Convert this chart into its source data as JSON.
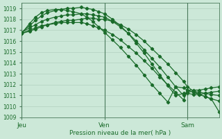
{
  "bg_color": "#cce8d8",
  "grid_color": "#aacbb8",
  "line_color": "#1a6b2a",
  "vline_color": "#4a7a5a",
  "ylabel_text": "Pression niveau de la mer( hPa )",
  "ylim": [
    1009,
    1019.5
  ],
  "yticks": [
    1009,
    1010,
    1011,
    1012,
    1013,
    1014,
    1015,
    1016,
    1017,
    1018,
    1019
  ],
  "xtick_labels": [
    "Jeu",
    "Ven",
    "Sam"
  ],
  "xtick_positions": [
    0,
    0.42,
    0.84
  ],
  "vline_positions": [
    0,
    0.42,
    0.84
  ],
  "series": [
    {
      "x": [
        0.0,
        0.04,
        0.07,
        0.1,
        0.13,
        0.17,
        0.2,
        0.23,
        0.26,
        0.3,
        0.33,
        0.36,
        0.39,
        0.42,
        0.46,
        0.5,
        0.54,
        0.58,
        0.62,
        0.66,
        0.7,
        0.74,
        0.78,
        0.82,
        0.84,
        0.87,
        0.9,
        0.93,
        0.96,
        1.0
      ],
      "y": [
        1016.7,
        1016.9,
        1017.1,
        1017.3,
        1017.5,
        1017.7,
        1017.8,
        1017.9,
        1017.9,
        1018.0,
        1018.1,
        1018.1,
        1018.0,
        1018.0,
        1017.8,
        1017.5,
        1017.1,
        1016.6,
        1016.0,
        1015.3,
        1014.6,
        1013.9,
        1013.1,
        1012.3,
        1011.8,
        1011.4,
        1011.1,
        1010.9,
        1010.7,
        1010.5
      ]
    },
    {
      "x": [
        0.0,
        0.04,
        0.07,
        0.1,
        0.13,
        0.17,
        0.2,
        0.23,
        0.26,
        0.3,
        0.33,
        0.36,
        0.39,
        0.42,
        0.46,
        0.5,
        0.54,
        0.58,
        0.62,
        0.66,
        0.7,
        0.74,
        0.78,
        0.82,
        0.84,
        0.87,
        0.9,
        0.93,
        0.96,
        1.0
      ],
      "y": [
        1016.8,
        1017.2,
        1017.5,
        1017.8,
        1018.0,
        1018.2,
        1018.3,
        1018.4,
        1018.4,
        1018.5,
        1018.5,
        1018.4,
        1018.3,
        1018.2,
        1017.8,
        1017.3,
        1016.7,
        1016.0,
        1015.2,
        1014.4,
        1013.6,
        1012.7,
        1011.8,
        1011.0,
        1011.2,
        1011.1,
        1011.1,
        1011.2,
        1011.3,
        1011.4
      ]
    },
    {
      "x": [
        0.0,
        0.04,
        0.07,
        0.1,
        0.13,
        0.17,
        0.2,
        0.23,
        0.26,
        0.3,
        0.33,
        0.36,
        0.39,
        0.42,
        0.46,
        0.5,
        0.54,
        0.58,
        0.62,
        0.66,
        0.7,
        0.74,
        0.78,
        0.82,
        0.84,
        0.87,
        0.9,
        0.93,
        0.96,
        1.0
      ],
      "y": [
        1016.8,
        1017.4,
        1017.9,
        1018.3,
        1018.6,
        1018.8,
        1018.9,
        1019.0,
        1019.0,
        1019.1,
        1019.0,
        1018.9,
        1018.7,
        1018.5,
        1018.0,
        1017.4,
        1016.7,
        1015.8,
        1014.9,
        1013.9,
        1012.9,
        1011.9,
        1011.0,
        1011.2,
        1011.3,
        1011.4,
        1011.3,
        1011.2,
        1011.1,
        1011.0
      ]
    },
    {
      "x": [
        0.0,
        0.04,
        0.07,
        0.1,
        0.13,
        0.17,
        0.2,
        0.23,
        0.26,
        0.3,
        0.33,
        0.36,
        0.39,
        0.42,
        0.46,
        0.5,
        0.54,
        0.58,
        0.62,
        0.66,
        0.7,
        0.74,
        0.78,
        0.82,
        0.84,
        0.87,
        0.9,
        0.93,
        0.96,
        1.0
      ],
      "y": [
        1016.7,
        1017.0,
        1017.2,
        1017.4,
        1017.5,
        1017.6,
        1017.7,
        1017.7,
        1017.7,
        1017.7,
        1017.6,
        1017.4,
        1017.2,
        1017.0,
        1016.6,
        1016.1,
        1015.5,
        1014.9,
        1014.2,
        1013.5,
        1012.7,
        1012.0,
        1011.3,
        1010.6,
        1011.5,
        1011.5,
        1011.5,
        1011.6,
        1011.7,
        1011.8
      ]
    },
    {
      "x": [
        0.0,
        0.04,
        0.07,
        0.1,
        0.13,
        0.17,
        0.2,
        0.23,
        0.26,
        0.3,
        0.33,
        0.36,
        0.39,
        0.42,
        0.46,
        0.5,
        0.54,
        0.58,
        0.62,
        0.66,
        0.7,
        0.74,
        0.78,
        0.82,
        0.84,
        0.87,
        0.9,
        0.93,
        0.96,
        1.0
      ],
      "y": [
        1016.7,
        1017.6,
        1018.2,
        1018.6,
        1018.8,
        1018.9,
        1018.9,
        1018.8,
        1018.7,
        1018.5,
        1018.2,
        1017.8,
        1017.3,
        1016.8,
        1016.1,
        1015.4,
        1014.6,
        1013.8,
        1012.9,
        1012.0,
        1011.2,
        1010.4,
        1011.8,
        1011.7,
        1011.5,
        1011.3,
        1011.1,
        1010.9,
        1010.7,
        1009.5
      ]
    }
  ]
}
